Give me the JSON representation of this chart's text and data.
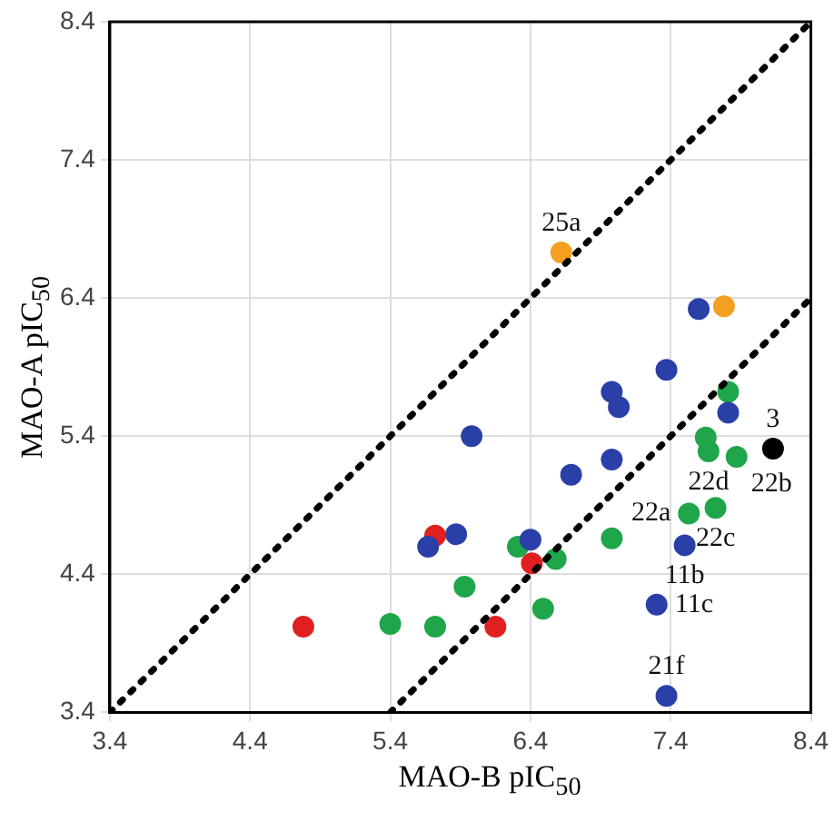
{
  "chart_data": {
    "type": "scatter",
    "xlabel": "MAO-B pIC$_{50}$",
    "ylabel": "MAO-A pIC$_{50}$",
    "xlim": [
      3.4,
      8.4
    ],
    "ylim": [
      3.4,
      8.4
    ],
    "xticks": [
      3.4,
      4.4,
      5.4,
      6.4,
      7.4,
      8.4
    ],
    "yticks": [
      3.4,
      4.4,
      5.4,
      6.4,
      7.4,
      8.4
    ],
    "grid": true,
    "legend": false,
    "marker": "circle",
    "series": [
      {
        "type": "line",
        "line_style": "dotted",
        "marker": "none",
        "color": "#000000",
        "x": [
          3.4,
          8.4
        ],
        "values": [
          3.4,
          8.4
        ]
      },
      {
        "type": "line",
        "line_style": "dotted",
        "marker": "none",
        "color": "#000000",
        "x": [
          5.4,
          8.4
        ],
        "values": [
          3.4,
          6.4
        ]
      },
      {
        "color": "#2b3fa8",
        "x": [
          7.6,
          7.37,
          6.98,
          7.03,
          7.81,
          5.98,
          6.98,
          6.69,
          7.5,
          5.87,
          5.67,
          6.4,
          7.3,
          7.37
        ],
        "values": [
          6.32,
          5.88,
          5.72,
          5.61,
          5.57,
          5.4,
          5.23,
          5.12,
          4.61,
          4.69,
          4.6,
          4.65,
          4.18,
          3.52
        ]
      },
      {
        "color": "#1fa64a",
        "x": [
          7.81,
          7.65,
          7.67,
          7.87,
          7.53,
          7.72,
          6.98,
          6.31,
          6.58,
          5.93,
          6.49,
          5.4,
          5.72
        ],
        "values": [
          5.72,
          5.39,
          5.29,
          5.25,
          4.84,
          4.88,
          4.66,
          4.6,
          4.51,
          4.31,
          4.15,
          4.04,
          4.02
        ]
      },
      {
        "color": "#e02020",
        "x": [
          5.72,
          6.41,
          6.15,
          4.78
        ],
        "values": [
          4.68,
          4.48,
          4.02,
          4.02
        ]
      },
      {
        "color": "#f5a020",
        "x": [
          6.62,
          7.78
        ],
        "values": [
          6.73,
          6.34
        ]
      },
      {
        "color": "#000000",
        "x": [
          8.13
        ],
        "values": [
          5.31
        ]
      }
    ],
    "annotations": [
      {
        "text": "25a",
        "x": 6.62,
        "y": 6.73
      },
      {
        "text": "3",
        "x": 8.13,
        "y": 5.31
      },
      {
        "text": "22d",
        "x": 7.67,
        "y": 5.29
      },
      {
        "text": "22b",
        "x": 7.87,
        "y": 5.25
      },
      {
        "text": "22a",
        "x": 7.53,
        "y": 4.84
      },
      {
        "text": "22c",
        "x": 7.72,
        "y": 4.88
      },
      {
        "text": "11b",
        "x": 7.5,
        "y": 4.61
      },
      {
        "text": "11c",
        "x": 7.3,
        "y": 4.18
      },
      {
        "text": "21f",
        "x": 7.37,
        "y": 3.52
      }
    ]
  }
}
